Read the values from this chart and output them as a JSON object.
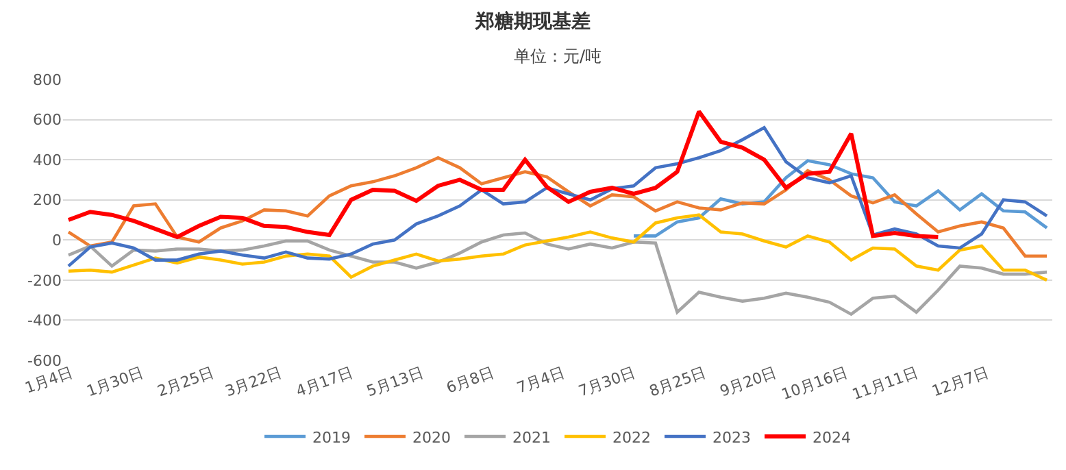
{
  "chart_data": {
    "type": "line",
    "title": "郑糖期现基差",
    "subtitle": "单位：元/吨",
    "x": [
      "--01-03",
      "--01-11",
      "--01-19",
      "--01-27",
      "--02-04",
      "--02-12",
      "--02-20",
      "--02-28",
      "--03-08",
      "--03-16",
      "--03-24",
      "--04-01",
      "--04-09",
      "--04-17",
      "--04-25",
      "--05-03",
      "--05-11",
      "--05-19",
      "--05-27",
      "--06-04",
      "--06-12",
      "--06-20",
      "--06-28",
      "--07-06",
      "--07-14",
      "--07-22",
      "--07-30",
      "--08-07",
      "--08-15",
      "--08-23",
      "--08-31",
      "--09-08",
      "--09-16",
      "--09-24",
      "--10-02",
      "--10-10",
      "--10-18",
      "--10-26",
      "--11-03",
      "--11-11",
      "--11-19",
      "--11-27",
      "--12-05",
      "--12-13",
      "--12-21",
      "--12-29"
    ],
    "series": [
      {
        "name": "2019",
        "color": "#5b9bd5",
        "values": [
          null,
          null,
          null,
          null,
          null,
          null,
          null,
          null,
          null,
          null,
          null,
          null,
          null,
          null,
          null,
          null,
          null,
          null,
          null,
          null,
          null,
          null,
          null,
          null,
          null,
          null,
          20,
          20,
          90,
          110,
          205,
          180,
          190,
          310,
          395,
          375,
          330,
          310,
          190,
          170,
          245,
          150,
          230,
          145,
          140,
          60
        ]
      },
      {
        "name": "2020",
        "color": "#ed7d31",
        "values": [
          40,
          -30,
          -10,
          170,
          180,
          15,
          -10,
          60,
          95,
          150,
          145,
          120,
          220,
          270,
          290,
          320,
          360,
          410,
          360,
          280,
          310,
          340,
          315,
          240,
          170,
          225,
          215,
          145,
          190,
          160,
          150,
          185,
          180,
          250,
          345,
          300,
          220,
          185,
          225,
          130,
          40,
          70,
          90,
          60,
          -80,
          -80
        ]
      },
      {
        "name": "2021",
        "color": "#a5a5a5",
        "values": [
          -75,
          -30,
          -130,
          -50,
          -55,
          -45,
          -45,
          -55,
          -50,
          -30,
          -5,
          -5,
          -50,
          -80,
          -110,
          -110,
          -140,
          -110,
          -65,
          -10,
          25,
          35,
          -20,
          -45,
          -20,
          -40,
          -10,
          -15,
          -360,
          -260,
          -285,
          -305,
          -290,
          -265,
          -285,
          -310,
          -370,
          -290,
          -280,
          -360,
          -250,
          -130,
          -140,
          -170,
          -170,
          -160
        ]
      },
      {
        "name": "2022",
        "color": "#ffc000",
        "values": [
          -155,
          -150,
          -160,
          -125,
          -90,
          -115,
          -85,
          -100,
          -120,
          -110,
          -80,
          -70,
          -80,
          -185,
          -130,
          -100,
          -70,
          -105,
          -95,
          -80,
          -70,
          -25,
          -5,
          15,
          40,
          10,
          -10,
          85,
          110,
          125,
          40,
          30,
          -5,
          -35,
          20,
          -10,
          -100,
          -40,
          -45,
          -130,
          -150,
          -50,
          -30,
          -150,
          -150,
          -200
        ]
      },
      {
        "name": "2023",
        "color": "#4472c4",
        "values": [
          -130,
          -35,
          -15,
          -40,
          -100,
          -100,
          -70,
          -55,
          -75,
          -90,
          -60,
          -90,
          -95,
          -70,
          -20,
          0,
          80,
          120,
          170,
          250,
          180,
          190,
          260,
          230,
          200,
          255,
          270,
          360,
          380,
          410,
          445,
          500,
          560,
          390,
          310,
          285,
          320,
          25,
          55,
          30,
          -30,
          -40,
          30,
          200,
          190,
          120
        ]
      },
      {
        "name": "2024",
        "color": "#ff0000",
        "values": [
          100,
          140,
          125,
          95,
          55,
          15,
          70,
          115,
          110,
          70,
          65,
          40,
          25,
          200,
          250,
          245,
          195,
          270,
          300,
          250,
          250,
          400,
          265,
          190,
          240,
          260,
          230,
          260,
          340,
          640,
          490,
          460,
          400,
          260,
          330,
          340,
          530,
          20,
          35,
          20,
          15,
          null,
          null,
          null,
          null,
          null
        ]
      }
    ],
    "xlim": [
      "--01-01",
      "--12-31"
    ],
    "xticks": [
      {
        "value": "--01-04",
        "label": "1月4日"
      },
      {
        "value": "--01-30",
        "label": "1月30日"
      },
      {
        "value": "--02-25",
        "label": "2月25日"
      },
      {
        "value": "--03-22",
        "label": "3月22日"
      },
      {
        "value": "--04-17",
        "label": "4月17日"
      },
      {
        "value": "--05-13",
        "label": "5月13日"
      },
      {
        "value": "--06-08",
        "label": "6月8日"
      },
      {
        "value": "--07-04",
        "label": "7月4日"
      },
      {
        "value": "--07-30",
        "label": "7月30日"
      },
      {
        "value": "--08-25",
        "label": "8月25日"
      },
      {
        "value": "--09-20",
        "label": "9月20日"
      },
      {
        "value": "--10-16",
        "label": "10月16日"
      },
      {
        "value": "--11-11",
        "label": "11月11日"
      },
      {
        "value": "--12-07",
        "label": "12月7日"
      }
    ],
    "ylim": [
      -600,
      800
    ],
    "yticks": [
      -600,
      -400,
      -200,
      0,
      200,
      400,
      600,
      800
    ],
    "grid": "y",
    "legend": "bottom",
    "marker": "none",
    "line_style": "solid"
  }
}
